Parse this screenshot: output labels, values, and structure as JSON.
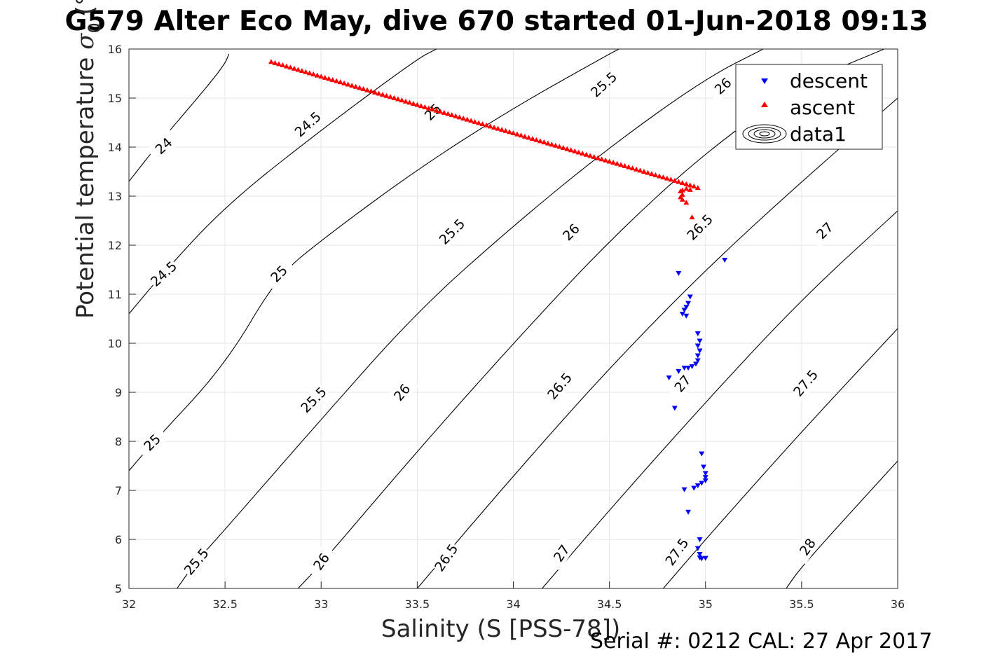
{
  "title": "G579 Alter Eco May, dive 670 started 01-Jun-2018 09:13",
  "footer": {
    "serial": "Serial #: 0212  CAL: 27 Apr 2017"
  },
  "colors": {
    "descent": "#0000ff",
    "ascent": "#ff0000",
    "contour": "#000000",
    "grid": "#e6e6e6"
  },
  "chart_data": {
    "type": "scatter",
    "xlabel": "Salinity (S [PSS-78])",
    "ylabel": {
      "main": "Potential temperature ",
      "symbol": "σ",
      "subscript": "0",
      "unit": " (°C)"
    },
    "xlim": [
      32,
      36
    ],
    "ylim": [
      5,
      16
    ],
    "xticks": [
      "32",
      "32.5",
      "33",
      "33.5",
      "34",
      "34.5",
      "35",
      "35.5",
      "36"
    ],
    "yticks": [
      "5",
      "6",
      "7",
      "8",
      "9",
      "10",
      "11",
      "12",
      "13",
      "14",
      "15",
      "16"
    ],
    "grid": true,
    "legend_position": "top-right",
    "legend": [
      "descent",
      "ascent",
      "data1"
    ],
    "contour_levels": [
      "24",
      "24.5",
      "25",
      "25.5",
      "26",
      "26.5",
      "27",
      "27.5",
      "28"
    ],
    "series": [
      {
        "name": "descent",
        "marker": "triangle-down",
        "points": [
          [
            35.1,
            11.7
          ],
          [
            34.86,
            11.43
          ],
          [
            34.92,
            10.95
          ],
          [
            34.91,
            10.82
          ],
          [
            34.9,
            10.74
          ],
          [
            34.89,
            10.68
          ],
          [
            34.88,
            10.6
          ],
          [
            34.9,
            10.56
          ],
          [
            34.96,
            10.2
          ],
          [
            34.97,
            10.05
          ],
          [
            34.96,
            9.95
          ],
          [
            34.97,
            9.85
          ],
          [
            34.96,
            9.75
          ],
          [
            34.96,
            9.65
          ],
          [
            34.95,
            9.58
          ],
          [
            34.93,
            9.53
          ],
          [
            34.91,
            9.5
          ],
          [
            34.89,
            9.5
          ],
          [
            34.86,
            9.43
          ],
          [
            34.81,
            9.3
          ],
          [
            34.84,
            8.68
          ],
          [
            34.98,
            7.75
          ],
          [
            34.99,
            7.48
          ],
          [
            35.0,
            7.35
          ],
          [
            35.0,
            7.27
          ],
          [
            35.0,
            7.2
          ],
          [
            34.98,
            7.15
          ],
          [
            34.96,
            7.1
          ],
          [
            34.94,
            7.05
          ],
          [
            34.89,
            7.02
          ],
          [
            34.91,
            6.56
          ],
          [
            34.97,
            6.0
          ],
          [
            34.96,
            5.82
          ],
          [
            34.97,
            5.7
          ],
          [
            34.97,
            5.63
          ],
          [
            34.98,
            5.61
          ],
          [
            35.0,
            5.62
          ]
        ]
      },
      {
        "name": "ascent",
        "marker": "triangle-up",
        "start": [
          32.74,
          15.74
        ],
        "end": [
          34.94,
          13.2
        ],
        "extra_points": [
          [
            34.96,
            13.17
          ],
          [
            34.9,
            13.15
          ],
          [
            34.88,
            13.12
          ],
          [
            34.87,
            13.1
          ],
          [
            34.92,
            13.13
          ],
          [
            34.88,
            13.03
          ],
          [
            34.87,
            12.98
          ],
          [
            34.88,
            12.93
          ],
          [
            34.9,
            12.87
          ],
          [
            34.93,
            12.57
          ]
        ]
      }
    ],
    "contours": [
      {
        "level": "24",
        "points": [
          [
            32.0,
            13.3
          ],
          [
            32.16,
            14.1
          ],
          [
            32.4,
            15.2
          ],
          [
            32.5,
            15.7
          ],
          [
            32.52,
            15.9
          ]
        ],
        "label_at": [
          32.18,
          14.03
        ],
        "angle": -42
      },
      {
        "level": "24.5",
        "points": [
          [
            32.0,
            10.6
          ],
          [
            32.16,
            11.35
          ],
          [
            32.5,
            12.8
          ],
          [
            33.0,
            14.35
          ],
          [
            33.5,
            15.8
          ],
          [
            33.6,
            16.0
          ]
        ],
        "label_at": [
          32.18,
          11.42
        ],
        "angle": -42
      },
      {
        "level": "24.5",
        "points": [],
        "label_at": [
          32.93,
          14.47
        ],
        "angle": -42
      },
      {
        "level": "25",
        "points": [
          [
            32.0,
            7.4
          ],
          [
            32.12,
            7.95
          ],
          [
            32.5,
            9.55
          ],
          [
            32.77,
            11.35
          ],
          [
            33.0,
            12.1
          ],
          [
            33.5,
            13.55
          ],
          [
            34.0,
            14.8
          ],
          [
            34.5,
            15.9
          ],
          [
            34.55,
            16.0
          ]
        ],
        "label_at": [
          32.12,
          7.98
        ],
        "angle": -45
      },
      {
        "level": "25",
        "points": [],
        "label_at": [
          32.78,
          11.42
        ],
        "angle": -45
      },
      {
        "level": "25",
        "points": [],
        "label_at": [
          33.58,
          14.72
        ],
        "angle": -45
      },
      {
        "level": "25.5",
        "points": [
          [
            32.25,
            5.0
          ],
          [
            32.35,
            5.55
          ],
          [
            32.5,
            6.2
          ],
          [
            33.0,
            8.45
          ],
          [
            33.5,
            10.65
          ],
          [
            34.0,
            12.4
          ],
          [
            34.5,
            14.0
          ],
          [
            35.0,
            15.4
          ],
          [
            35.3,
            16.0
          ]
        ],
        "label_at": [
          32.35,
          5.55
        ],
        "angle": -50
      },
      {
        "level": "25.5",
        "points": [],
        "label_at": [
          32.96,
          8.85
        ],
        "angle": -45
      },
      {
        "level": "25.5",
        "points": [],
        "label_at": [
          33.68,
          12.28
        ],
        "angle": -45
      },
      {
        "level": "25.5",
        "points": [],
        "label_at": [
          34.47,
          15.28
        ],
        "angle": -42
      },
      {
        "level": "26",
        "points": [
          [
            32.88,
            5.0
          ],
          [
            33.0,
            5.5
          ],
          [
            33.5,
            7.8
          ],
          [
            34.0,
            10.0
          ],
          [
            34.5,
            12.1
          ],
          [
            35.0,
            13.9
          ],
          [
            35.5,
            15.3
          ],
          [
            35.93,
            16.0
          ]
        ],
        "label_at": [
          33.42,
          9.0
        ],
        "angle": -50
      },
      {
        "level": "26",
        "points": [],
        "label_at": [
          33.0,
          5.55
        ],
        "angle": -55
      },
      {
        "level": "26",
        "points": [],
        "label_at": [
          34.3,
          12.27
        ],
        "angle": -45
      },
      {
        "level": "26",
        "points": [],
        "label_at": [
          35.09,
          15.25
        ],
        "angle": -42
      },
      {
        "level": "26.5",
        "points": [
          [
            33.5,
            5.0
          ],
          [
            34.0,
            7.3
          ],
          [
            34.5,
            9.5
          ],
          [
            35.0,
            11.5
          ],
          [
            35.5,
            13.3
          ],
          [
            36.0,
            15.0
          ]
        ],
        "label_at": [
          33.65,
          5.63
        ],
        "angle": -55
      },
      {
        "level": "26.5",
        "points": [],
        "label_at": [
          34.24,
          9.13
        ],
        "angle": -50
      },
      {
        "level": "26.5",
        "points": [],
        "label_at": [
          34.97,
          12.37
        ],
        "angle": -45
      },
      {
        "level": "27",
        "points": [
          [
            34.15,
            5.0
          ],
          [
            34.5,
            6.6
          ],
          [
            35.0,
            8.8
          ],
          [
            35.5,
            10.9
          ],
          [
            36.0,
            12.7
          ]
        ],
        "label_at": [
          34.25,
          5.72
        ],
        "angle": -55
      },
      {
        "level": "27",
        "points": [],
        "label_at": [
          34.88,
          9.18
        ],
        "angle": -50
      },
      {
        "level": "27",
        "points": [],
        "label_at": [
          35.62,
          12.3
        ],
        "angle": -45
      },
      {
        "level": "27.5",
        "points": [
          [
            34.78,
            5.0
          ],
          [
            35.0,
            6.0
          ],
          [
            35.5,
            8.2
          ],
          [
            36.0,
            10.3
          ]
        ],
        "label_at": [
          34.85,
          5.75
        ],
        "angle": -55
      },
      {
        "level": "27.5",
        "points": [],
        "label_at": [
          35.52,
          9.19
        ],
        "angle": -50
      },
      {
        "level": "28",
        "points": [
          [
            35.42,
            5.0
          ],
          [
            35.5,
            5.45
          ],
          [
            36.0,
            7.6
          ]
        ],
        "label_at": [
          35.53,
          5.85
        ],
        "angle": -55
      }
    ]
  }
}
